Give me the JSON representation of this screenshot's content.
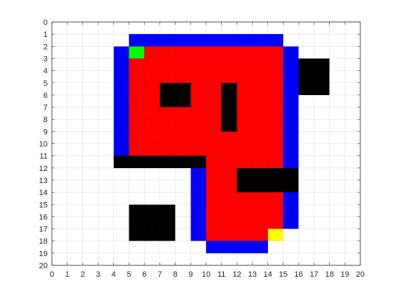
{
  "chart_data": {
    "type": "heatmap",
    "title": "",
    "xlabel": "",
    "ylabel": "",
    "xlim": [
      0,
      20
    ],
    "ylim": [
      0,
      20
    ],
    "y_direction": "reverse",
    "xticks": [
      0,
      1,
      2,
      3,
      4,
      5,
      6,
      7,
      8,
      9,
      10,
      11,
      12,
      13,
      14,
      15,
      16,
      17,
      18,
      19,
      20
    ],
    "yticks": [
      0,
      1,
      2,
      3,
      4,
      5,
      6,
      7,
      8,
      9,
      10,
      11,
      12,
      13,
      14,
      15,
      16,
      17,
      18,
      19,
      20
    ],
    "grid": true,
    "colors": {
      "blue": "#0000ff",
      "red": "#ff0000",
      "black": "#000000",
      "green": "#00ff00",
      "yellow": "#ffff00",
      "white": "#ffffff"
    },
    "rect_format": [
      "x0",
      "y0",
      "x1",
      "y1",
      "color"
    ],
    "rects": [
      [
        5,
        1,
        15,
        2,
        "blue"
      ],
      [
        4,
        2,
        5,
        11,
        "blue"
      ],
      [
        15,
        2,
        16,
        12,
        "blue"
      ],
      [
        9,
        12,
        10,
        18,
        "blue"
      ],
      [
        15,
        14,
        16,
        17,
        "blue"
      ],
      [
        10,
        18,
        14,
        19,
        "blue"
      ],
      [
        5,
        2,
        15,
        11,
        "red"
      ],
      [
        15,
        11,
        16,
        12,
        "blue"
      ],
      [
        10,
        11,
        15,
        17,
        "red"
      ],
      [
        10,
        17,
        14,
        18,
        "red"
      ],
      [
        5,
        2,
        6,
        3,
        "green"
      ],
      [
        14,
        17,
        15,
        18,
        "yellow"
      ],
      [
        16,
        3,
        18,
        6,
        "black"
      ],
      [
        7,
        5,
        9,
        7,
        "black"
      ],
      [
        11,
        5,
        12,
        9,
        "black"
      ],
      [
        4,
        11,
        10,
        12,
        "black"
      ],
      [
        12,
        12,
        16,
        14,
        "black"
      ],
      [
        5,
        15,
        8,
        18,
        "black"
      ]
    ]
  }
}
